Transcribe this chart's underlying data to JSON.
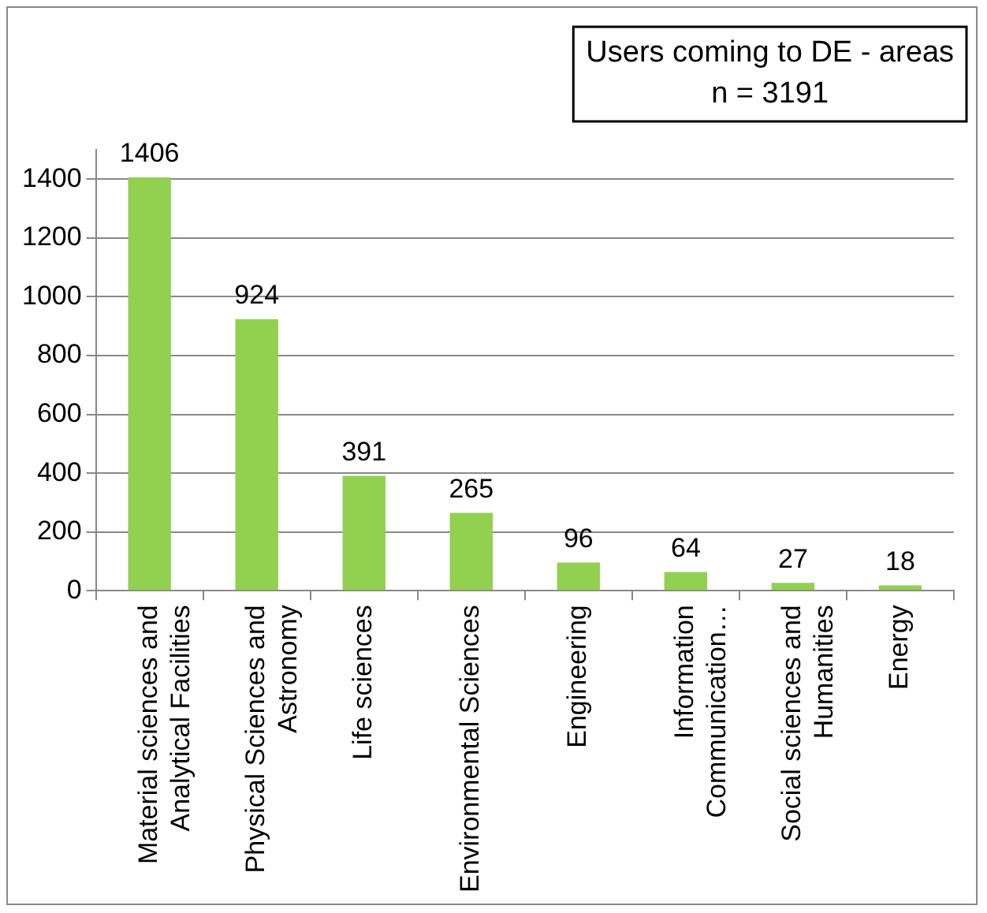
{
  "chart_data": {
    "type": "bar",
    "title": "Users coming to DE - areas",
    "subtitle": "n = 3191",
    "categories": [
      "Material sciences and Analytical Facilities",
      "Physical Sciences and Astronomy",
      "Life sciences",
      "Environmental Sciences",
      "Engineering",
      "Information Communication…",
      "Social sciences and Humanities",
      "Energy"
    ],
    "values": [
      1406,
      924,
      391,
      265,
      96,
      64,
      27,
      18
    ],
    "color": "#92d050",
    "ylim": [
      0,
      1500
    ],
    "yticks": [
      0,
      200,
      400,
      600,
      800,
      1000,
      1200,
      1400
    ],
    "grid": "y",
    "data_labels": true,
    "legend": false
  }
}
